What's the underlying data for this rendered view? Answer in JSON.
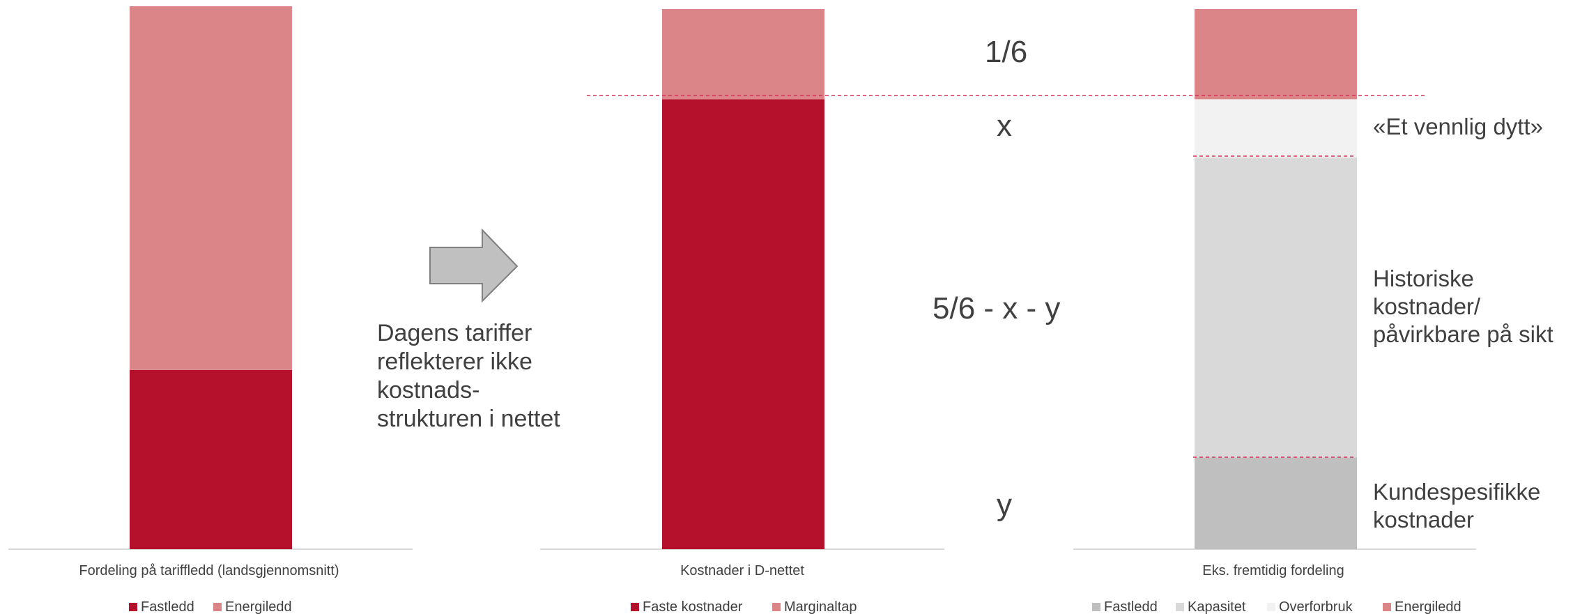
{
  "colors": {
    "fastledd_red": "#b5102c",
    "energiledd_pink": "#db8589",
    "marginaltap_pink": "#db8589",
    "gray_fastledd": "#bfbfbf",
    "gray_kapasitet": "#d9d9d9",
    "gray_overforbruk": "#f2f2f2",
    "dashed_line": "#d9305a",
    "baseline": "#d9d9d9",
    "arrow_fill": "#c0c0c0",
    "arrow_stroke": "#7f7f7f"
  },
  "icons": {
    "arrow": "arrow-right-icon"
  },
  "chart_data": [
    {
      "type": "bar",
      "stacked": true,
      "title": "Fordeling på tariffledd (landsgjennomsnitt)",
      "categories": [
        ""
      ],
      "ylim": [
        0,
        100
      ],
      "series": [
        {
          "name": "Fastledd",
          "values": [
            33
          ],
          "color": "#b5102c"
        },
        {
          "name": "Energiledd",
          "values": [
            67
          ],
          "color": "#db8589"
        }
      ],
      "legend": "bottom"
    },
    {
      "type": "bar",
      "stacked": true,
      "title": "Kostnader i D-nettet",
      "categories": [
        ""
      ],
      "ylim": [
        0,
        100
      ],
      "series": [
        {
          "name": "Faste kostnader",
          "values": [
            83.3
          ],
          "color": "#b5102c"
        },
        {
          "name": "Marginaltap",
          "values": [
            16.7
          ],
          "color": "#db8589"
        }
      ],
      "segment_labels": [
        "y",
        "5/6 - x - y",
        "x",
        "1/6"
      ],
      "legend": "bottom"
    },
    {
      "type": "bar",
      "stacked": true,
      "title": "Eks. fremtidig fordeling",
      "categories": [
        ""
      ],
      "ylim": [
        0,
        100
      ],
      "series": [
        {
          "name": "Fastledd",
          "values": [
            17
          ],
          "color": "#bfbfbf"
        },
        {
          "name": "Kapasitet",
          "values": [
            55.5
          ],
          "color": "#d9d9d9"
        },
        {
          "name": "Overforbruk",
          "values": [
            10.8
          ],
          "color": "#f2f2f2"
        },
        {
          "name": "Energiledd",
          "values": [
            16.7
          ],
          "color": "#db8589"
        }
      ],
      "annotations": [
        "Kundespesifikke kostnader",
        "Historiske kostnader/ påvirkbare på sikt",
        "«Et vennlig dytt»"
      ],
      "legend": "bottom"
    }
  ],
  "labels": {
    "fraction_top": "1/6",
    "x": "x",
    "middle": "5/6 - x - y",
    "y": "y"
  },
  "notes": {
    "arrow_text": [
      "Dagens tariffer",
      "reflekterer ikke",
      "kostnads-",
      "strukturen i nettet"
    ],
    "vennlig": "«Et vennlig dytt»",
    "historiske": [
      "Historiske",
      "kostnader/",
      "påvirkbare på sikt"
    ],
    "kundespesifikke": [
      "Kundespesifikke",
      "kostnader"
    ]
  }
}
